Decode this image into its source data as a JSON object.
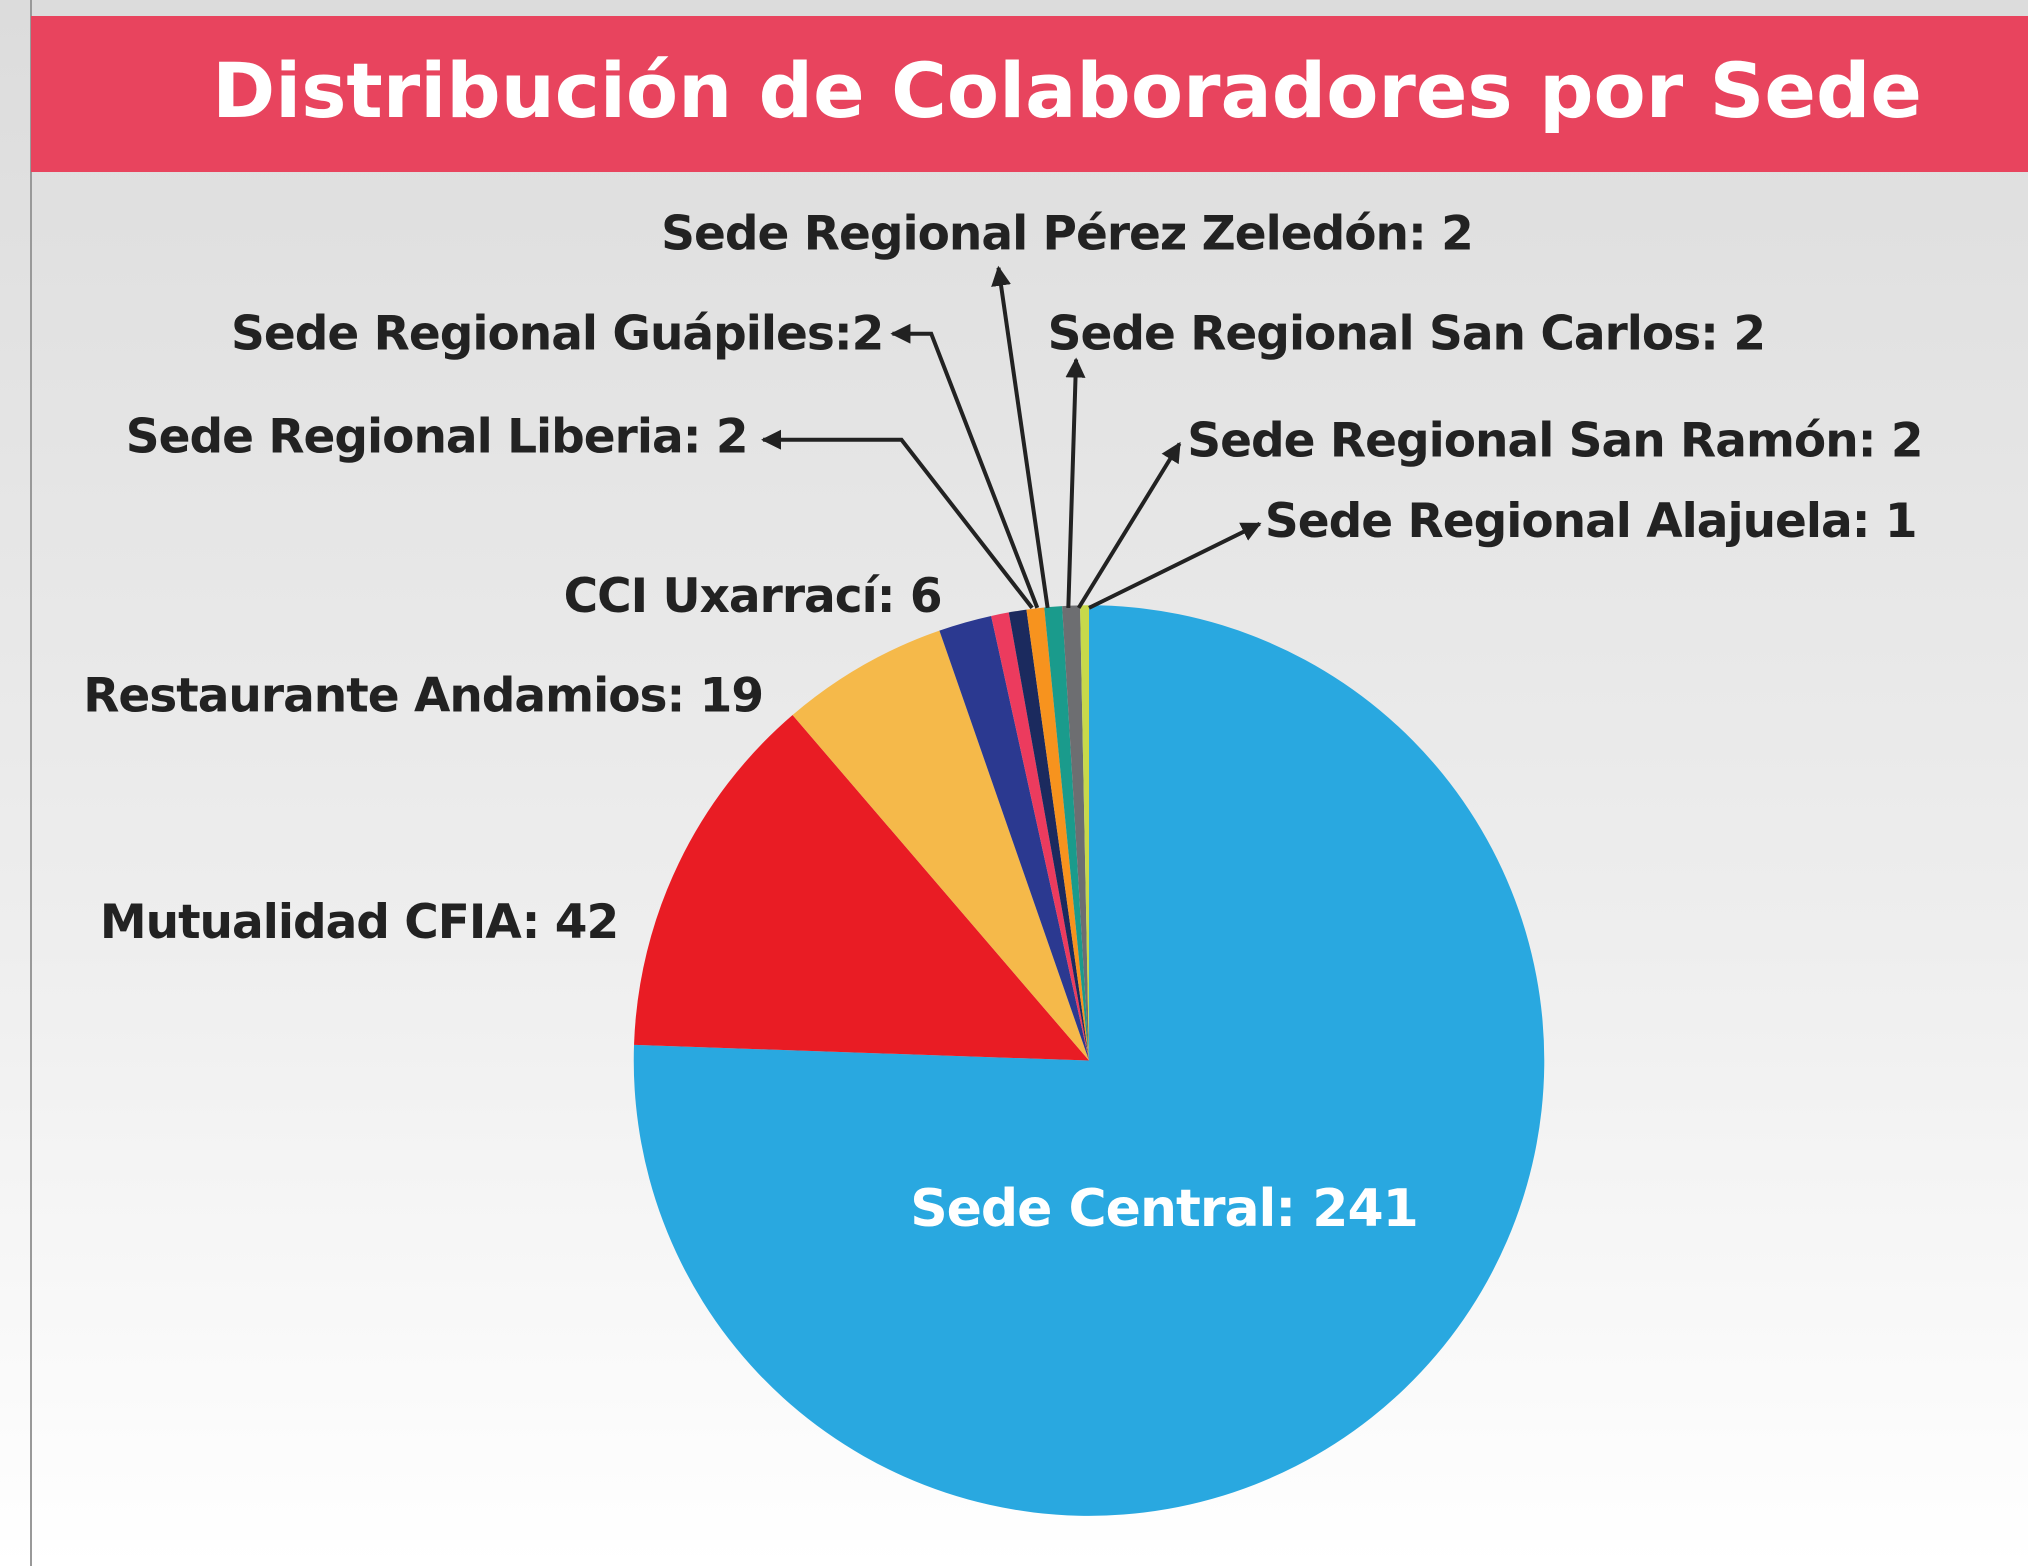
{
  "chart_data": {
    "type": "pie",
    "title": "Distribución de Colaboradores por Sede",
    "categories": [
      "Sede Central",
      "Mutualidad CFIA",
      "Restaurante Andamios",
      "CCI Uxarrací",
      "Sede Regional Liberia",
      "Sede Regional Guápiles",
      "Sede Regional Pérez Zeledón",
      "Sede Regional San Carlos",
      "Sede Regional San Ramón",
      "Sede Regional Alajuela"
    ],
    "values": [
      241,
      42,
      19,
      6,
      2,
      2,
      2,
      2,
      2,
      1
    ],
    "value_labels": [
      ": 241",
      ": 42",
      ": 19",
      ": 6",
      ": 2",
      ":2",
      ": 2",
      ": 2",
      ": 2",
      ": 1"
    ],
    "colors": [
      "#29a8e0",
      "#e91c24",
      "#f5b94a",
      "#2b3990",
      "#ec3b5e",
      "#1b2a5e",
      "#f7931e",
      "#1a9b8c",
      "#6d6e71",
      "#c8d94a"
    ]
  }
}
